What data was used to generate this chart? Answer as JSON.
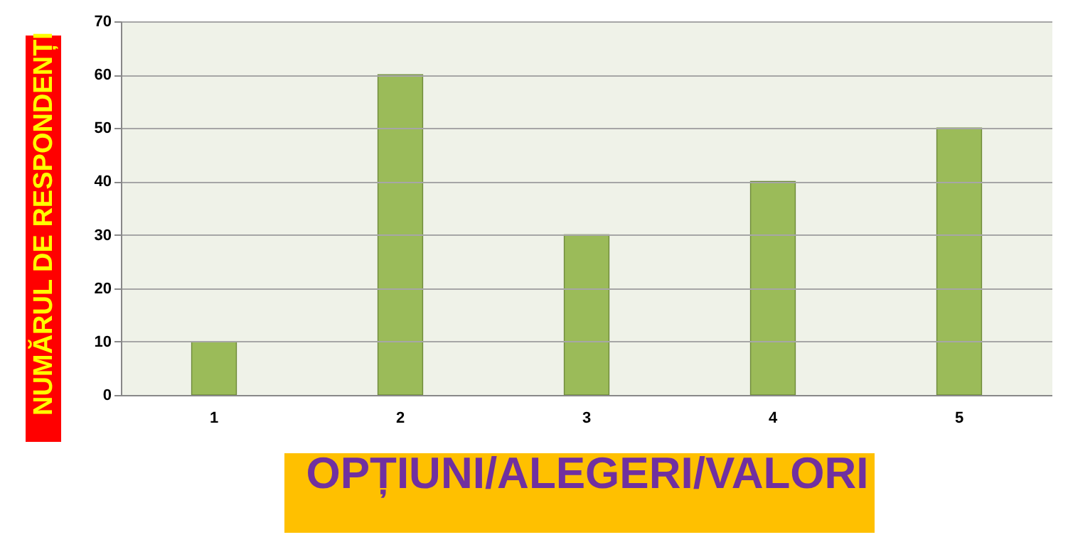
{
  "chart_data": {
    "type": "bar",
    "xlabel": "OPȚIUNI/ALEGERI/VALORI",
    "ylabel": "NUMĂRUL DE RESPONDENȚI",
    "categories": [
      "1",
      "2",
      "3",
      "4",
      "5"
    ],
    "values": [
      10,
      60,
      30,
      40,
      50
    ],
    "color": "#9bbb59",
    "ylim": [
      0,
      70
    ],
    "yticks": [
      0,
      10,
      20,
      30,
      40,
      50,
      60,
      70
    ],
    "grid": "y"
  }
}
